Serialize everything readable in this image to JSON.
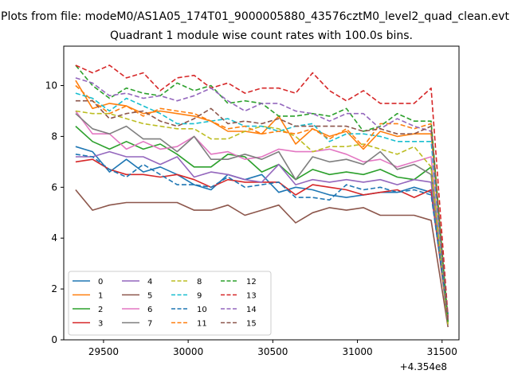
{
  "figure": {
    "suptitle": "Plots from file: modeM0/AS1A05_174T01_9000005880_43576cztM0_level2_quad_clean.evt"
  },
  "chart_data": {
    "type": "line",
    "title": "Quadrant 1 module wise count rates with 100.0s bins.",
    "xlabel": "",
    "ylabel": "",
    "x_offset_label": "+4.354e8",
    "xlim": [
      29265,
      31600
    ],
    "ylim": [
      0,
      11.55
    ],
    "xticks": [
      29500,
      30000,
      30500,
      31000,
      31500
    ],
    "xtick_labels": [
      "29500",
      "30000",
      "30500",
      "31000",
      "31500"
    ],
    "yticks": [
      0,
      2,
      4,
      6,
      8,
      10
    ],
    "ytick_labels": [
      "0",
      "2",
      "4",
      "6",
      "8",
      "10"
    ],
    "grid": false,
    "legend_position": "lower-left",
    "legend_columns": 4,
    "x": [
      29335,
      29435,
      29535,
      29635,
      29735,
      29835,
      29935,
      30035,
      30135,
      30235,
      30335,
      30435,
      30535,
      30635,
      30735,
      30835,
      30935,
      31035,
      31135,
      31235,
      31335,
      31435,
      31535
    ],
    "series": [
      {
        "name": "0",
        "color": "#1f77b4",
        "style": "solid",
        "values": [
          7.6,
          7.4,
          6.6,
          7.1,
          6.6,
          6.8,
          6.5,
          6.1,
          5.9,
          6.5,
          6.3,
          6.5,
          5.8,
          6.0,
          5.9,
          5.7,
          5.6,
          5.7,
          5.8,
          5.8,
          6.0,
          5.8,
          1.0
        ]
      },
      {
        "name": "1",
        "color": "#ff7f0e",
        "style": "solid",
        "values": [
          10.2,
          9.1,
          9.3,
          9.2,
          8.9,
          9.0,
          8.9,
          8.8,
          8.6,
          8.2,
          8.2,
          8.1,
          8.8,
          7.7,
          8.3,
          8.0,
          8.2,
          7.5,
          8.2,
          8.0,
          8.1,
          8.1,
          0.8
        ]
      },
      {
        "name": "2",
        "color": "#2ca02c",
        "style": "solid",
        "values": [
          8.4,
          7.8,
          7.5,
          7.8,
          7.5,
          7.7,
          7.3,
          6.8,
          6.8,
          7.3,
          7.2,
          6.6,
          6.9,
          6.3,
          6.7,
          6.5,
          6.6,
          6.5,
          6.7,
          6.4,
          6.3,
          6.8,
          0.7
        ]
      },
      {
        "name": "3",
        "color": "#d62728",
        "style": "solid",
        "values": [
          7.0,
          7.1,
          6.7,
          6.5,
          6.5,
          6.4,
          6.5,
          6.3,
          6.0,
          6.3,
          6.2,
          6.2,
          6.2,
          5.7,
          6.1,
          6.0,
          5.9,
          5.7,
          5.8,
          5.9,
          5.6,
          5.9,
          0.7
        ]
      },
      {
        "name": "4",
        "color": "#9467bd",
        "style": "solid",
        "values": [
          7.2,
          7.2,
          7.4,
          7.2,
          7.2,
          6.9,
          7.2,
          6.4,
          6.6,
          6.5,
          6.3,
          6.2,
          6.9,
          6.1,
          6.3,
          6.2,
          6.3,
          6.2,
          6.3,
          6.1,
          6.3,
          6.2,
          0.8
        ]
      },
      {
        "name": "5",
        "color": "#8c564b",
        "style": "solid",
        "values": [
          5.9,
          5.1,
          5.3,
          5.4,
          5.4,
          5.4,
          5.4,
          5.1,
          5.1,
          5.3,
          4.9,
          5.1,
          5.3,
          4.6,
          5.0,
          5.2,
          5.1,
          5.2,
          4.9,
          4.9,
          4.9,
          4.7,
          0.5
        ]
      },
      {
        "name": "6",
        "color": "#e377c2",
        "style": "solid",
        "values": [
          9.0,
          8.1,
          8.1,
          7.5,
          7.8,
          7.5,
          7.6,
          8.0,
          7.3,
          7.4,
          7.1,
          7.2,
          7.5,
          7.4,
          7.4,
          7.5,
          7.3,
          7.0,
          7.1,
          6.8,
          7.0,
          7.2,
          0.8
        ]
      },
      {
        "name": "7",
        "color": "#7f7f7f",
        "style": "solid",
        "values": [
          8.9,
          8.3,
          8.1,
          8.4,
          7.9,
          7.9,
          7.4,
          8.0,
          7.1,
          7.1,
          7.3,
          7.1,
          7.4,
          6.3,
          7.2,
          7.0,
          7.1,
          6.9,
          7.4,
          6.7,
          6.9,
          6.5,
          0.6
        ]
      },
      {
        "name": "8",
        "color": "#bcbd22",
        "style": "dashed",
        "values": [
          9.0,
          8.9,
          8.9,
          8.7,
          8.5,
          8.4,
          8.3,
          8.3,
          7.9,
          7.9,
          8.2,
          8.4,
          8.3,
          8.0,
          7.4,
          7.6,
          7.6,
          7.7,
          7.5,
          7.3,
          7.6,
          6.8,
          0.6
        ]
      },
      {
        "name": "9",
        "color": "#17becf",
        "style": "dashed",
        "values": [
          9.7,
          9.5,
          9.0,
          9.5,
          9.2,
          8.9,
          8.5,
          8.5,
          8.6,
          8.7,
          8.4,
          8.4,
          8.2,
          8.4,
          8.5,
          7.8,
          8.1,
          8.1,
          8.0,
          7.8,
          7.8,
          7.8,
          0.7
        ]
      },
      {
        "name": "10",
        "color": "#1f77b4",
        "style": "dashed",
        "values": [
          7.3,
          7.2,
          6.7,
          6.4,
          6.9,
          6.5,
          6.1,
          6.1,
          6.0,
          6.4,
          6.0,
          6.1,
          6.2,
          5.6,
          5.6,
          5.5,
          6.1,
          5.9,
          6.0,
          5.8,
          5.9,
          5.7,
          1.0
        ]
      },
      {
        "name": "11",
        "color": "#ff7f0e",
        "style": "dashed",
        "values": [
          10.0,
          9.4,
          8.9,
          9.2,
          8.8,
          9.1,
          9.0,
          8.9,
          8.6,
          8.3,
          8.4,
          8.1,
          8.2,
          8.1,
          8.3,
          7.9,
          8.3,
          7.6,
          8.5,
          8.5,
          8.3,
          8.5,
          0.8
        ]
      },
      {
        "name": "12",
        "color": "#2ca02c",
        "style": "dashed",
        "values": [
          10.8,
          10.0,
          9.5,
          9.9,
          9.7,
          9.6,
          10.1,
          9.8,
          10.0,
          9.3,
          9.4,
          9.3,
          8.8,
          8.8,
          8.9,
          8.8,
          9.1,
          8.2,
          8.4,
          8.9,
          8.6,
          8.6,
          0.7
        ]
      },
      {
        "name": "13",
        "color": "#d62728",
        "style": "dashed",
        "values": [
          10.8,
          10.5,
          10.8,
          10.3,
          10.5,
          9.8,
          10.3,
          10.4,
          9.9,
          10.1,
          9.7,
          9.9,
          9.9,
          9.7,
          10.5,
          9.8,
          9.4,
          9.8,
          9.3,
          9.3,
          9.3,
          9.9,
          0.9
        ]
      },
      {
        "name": "14",
        "color": "#9467bd",
        "style": "dashed",
        "values": [
          10.3,
          10.1,
          9.6,
          9.7,
          9.5,
          9.6,
          9.4,
          9.6,
          9.9,
          9.4,
          9.0,
          9.3,
          9.3,
          9.0,
          8.9,
          8.6,
          8.9,
          8.9,
          8.3,
          8.7,
          8.4,
          8.2,
          0.8
        ]
      },
      {
        "name": "15",
        "color": "#8c564b",
        "style": "dashed",
        "values": [
          9.4,
          9.4,
          8.7,
          8.9,
          9.0,
          8.6,
          8.4,
          8.7,
          9.1,
          8.5,
          8.6,
          8.5,
          8.7,
          8.4,
          8.4,
          8.4,
          8.4,
          8.2,
          8.3,
          8.1,
          8.1,
          8.4,
          0.7
        ]
      }
    ]
  }
}
